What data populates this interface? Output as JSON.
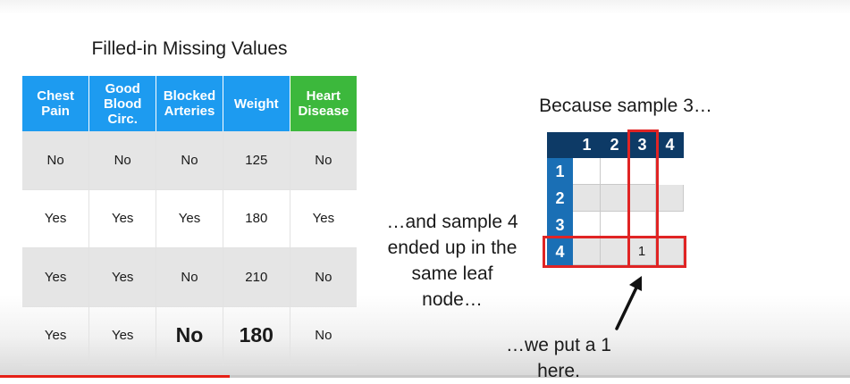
{
  "left": {
    "title": "Filled-in Missing Values",
    "headers": [
      "Chest Pain",
      "Good Blood Circ.",
      "Blocked Arteries",
      "Weight",
      "Heart Disease"
    ],
    "rows": [
      [
        "No",
        "No",
        "No",
        "125",
        "No"
      ],
      [
        "Yes",
        "Yes",
        "Yes",
        "180",
        "Yes"
      ],
      [
        "Yes",
        "Yes",
        "No",
        "210",
        "No"
      ],
      [
        "Yes",
        "Yes",
        "No",
        "180",
        "No"
      ]
    ],
    "colors": {
      "header_blue": "#1d9bf0",
      "header_green": "#3cb83c",
      "row_shade": "#e5e5e5"
    }
  },
  "right": {
    "title": "Because sample 3…",
    "matrix": {
      "col_labels": [
        "1",
        "2",
        "3",
        "4"
      ],
      "row_labels": [
        "1",
        "2",
        "3",
        "4"
      ],
      "marked_value": "1",
      "colors": {
        "header_dark": "#0d3a66",
        "row_header": "#1a6fb5",
        "highlight": "#e02424"
      }
    },
    "caption_sample4": [
      "…and sample 4",
      "ended up in the",
      "same leaf",
      "node…"
    ],
    "caption_put": [
      "…we put a 1",
      "here."
    ]
  },
  "player": {
    "progress_fraction": 0.27
  }
}
